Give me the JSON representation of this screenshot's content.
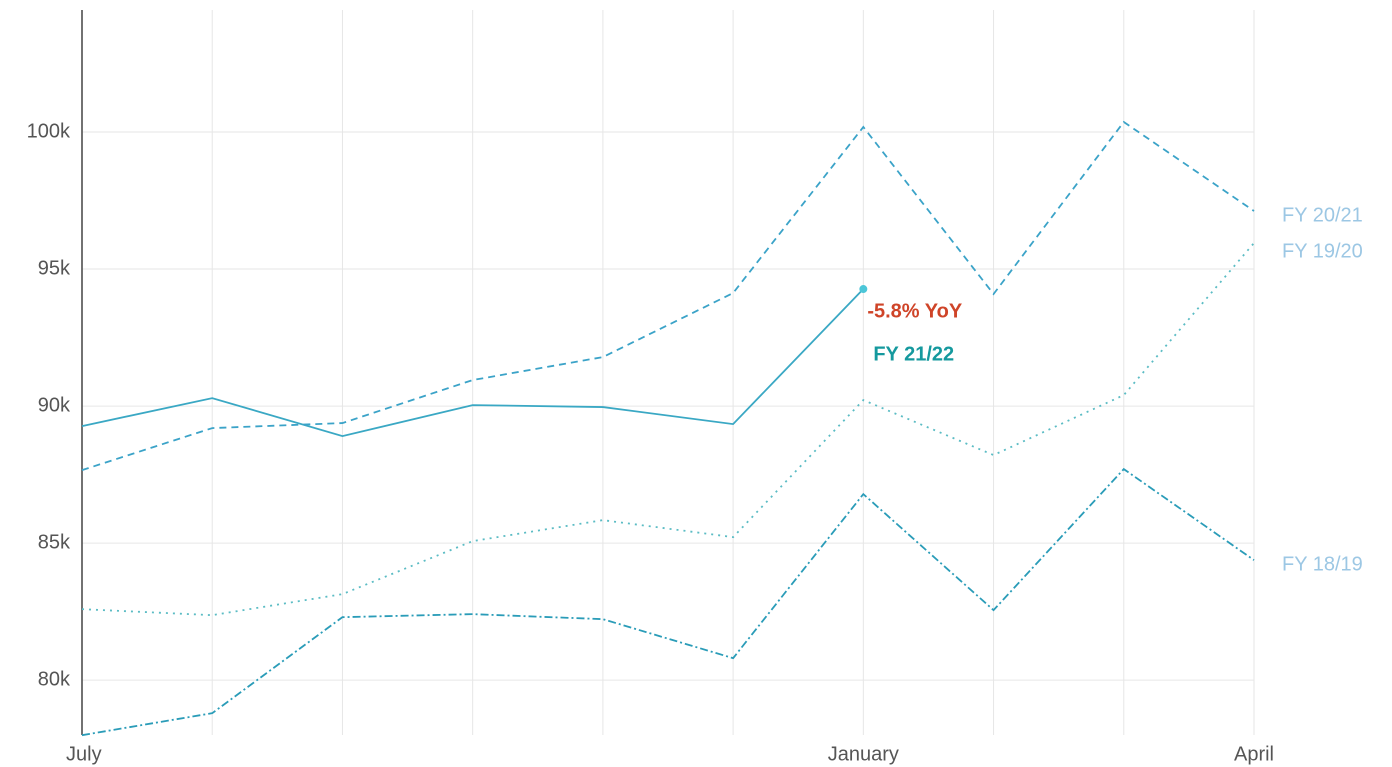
{
  "chart_data": {
    "type": "line",
    "categories": [
      "July",
      null,
      null,
      null,
      null,
      null,
      "January",
      null,
      null,
      "April"
    ],
    "ylim": [
      78000,
      104450
    ],
    "yticks": [
      {
        "value": 80000,
        "label": "80k"
      },
      {
        "value": 85000,
        "label": "85k"
      },
      {
        "value": 90000,
        "label": "90k"
      },
      {
        "value": 95000,
        "label": "95k"
      },
      {
        "value": 100000,
        "label": "100k"
      }
    ],
    "grid": true,
    "annotation": "-5.8% YoY",
    "series": [
      {
        "name": "FY 21/22",
        "color": "#3aa8c4",
        "style": "solid",
        "end_marker": true,
        "values": [
          89270,
          90290,
          88905,
          90036,
          89964,
          89343,
          94270,
          null,
          null,
          null
        ]
      },
      {
        "name": "FY 20/21",
        "color": "#3ba3c8",
        "style": "dashed",
        "values": [
          87664,
          89197,
          89380,
          90949,
          91788,
          94124,
          100182,
          94087,
          100365,
          97117
        ]
      },
      {
        "name": "FY 19/20",
        "color": "#5bbcc4",
        "style": "dotted",
        "values": [
          82591,
          82372,
          83139,
          85073,
          85839,
          85219,
          90219,
          88212,
          90401,
          95949
        ]
      },
      {
        "name": "FY 18/19",
        "color": "#2a9cb8",
        "style": "dashdot",
        "values": [
          77993,
          78796,
          82299,
          82409,
          82226,
          80803,
          86788,
          82555,
          87701,
          84380
        ]
      }
    ]
  }
}
